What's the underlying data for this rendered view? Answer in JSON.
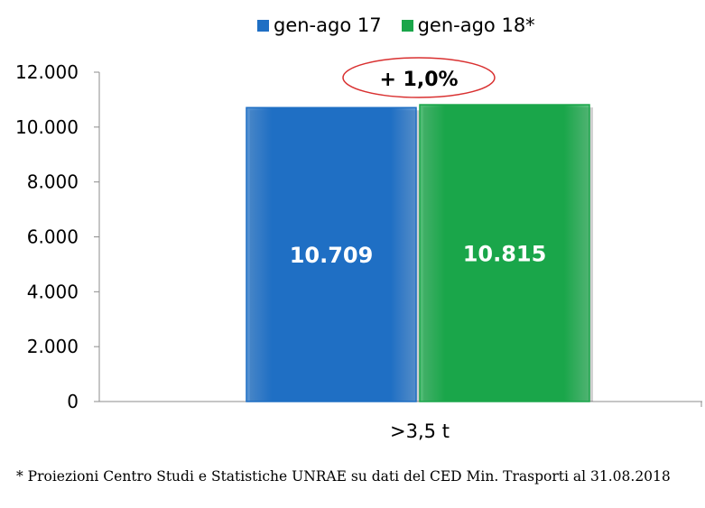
{
  "chart_data": {
    "type": "bar",
    "categories": [
      ">3,5 t"
    ],
    "series": [
      {
        "name": "gen-ago 17",
        "values": [
          10709
        ],
        "color": "#1f6fc4",
        "label": "10.709"
      },
      {
        "name": "gen-ago 18*",
        "values": [
          10815
        ],
        "color": "#1aa64a",
        "label": "10.815"
      }
    ],
    "ylim": [
      0,
      12000
    ],
    "yticks": [
      0,
      2000,
      4000,
      6000,
      8000,
      10000,
      12000
    ],
    "ytick_labels": [
      "0",
      "2.000",
      "4.000",
      "6.000",
      "8.000",
      "10.000",
      "12.000"
    ],
    "grid": false,
    "legend_position": "top-center",
    "annotation": "+ 1,0%"
  },
  "footnote": "* Proiezioni Centro Studi e Statistiche UNRAE su dati del CED Min. Trasporti al 31.08.2018"
}
